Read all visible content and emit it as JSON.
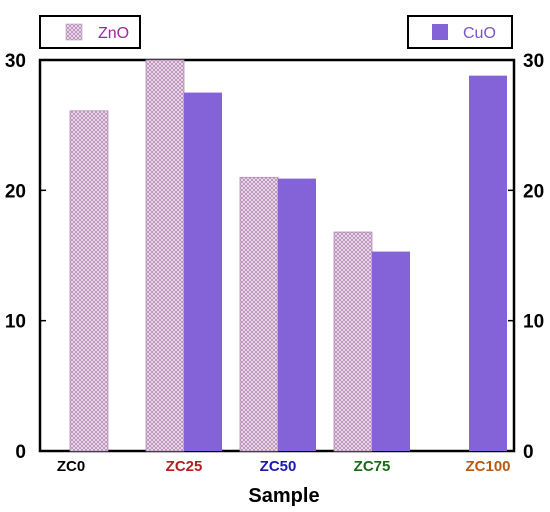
{
  "chart_data": {
    "type": "bar",
    "categories": [
      "ZC0",
      "ZC25",
      "ZC50",
      "ZC75",
      "ZC100"
    ],
    "category_colors": [
      "#000000",
      "#b02020",
      "#1a1ab0",
      "#1a6a1a",
      "#b85a10"
    ],
    "series": [
      {
        "name": "ZnO",
        "values": [
          26.1,
          30.0,
          21.0,
          16.8,
          null
        ],
        "color": "#d8bcd8",
        "pattern": "crosshatch"
      },
      {
        "name": "CuO",
        "values": [
          null,
          27.5,
          20.9,
          15.3,
          28.8
        ],
        "color": "#8462d8",
        "pattern": "solid"
      }
    ],
    "title": "",
    "xlabel": "Sample",
    "ylabel": "",
    "ylim": [
      0,
      30
    ],
    "yticks": [
      0,
      10,
      20,
      30
    ],
    "right_axis": true,
    "grid": false,
    "legend": [
      {
        "label": "ZnO",
        "text_color": "#9c2a9c",
        "position": "top-left"
      },
      {
        "label": "CuO",
        "text_color": "#7a55c8",
        "position": "top-right"
      }
    ]
  }
}
